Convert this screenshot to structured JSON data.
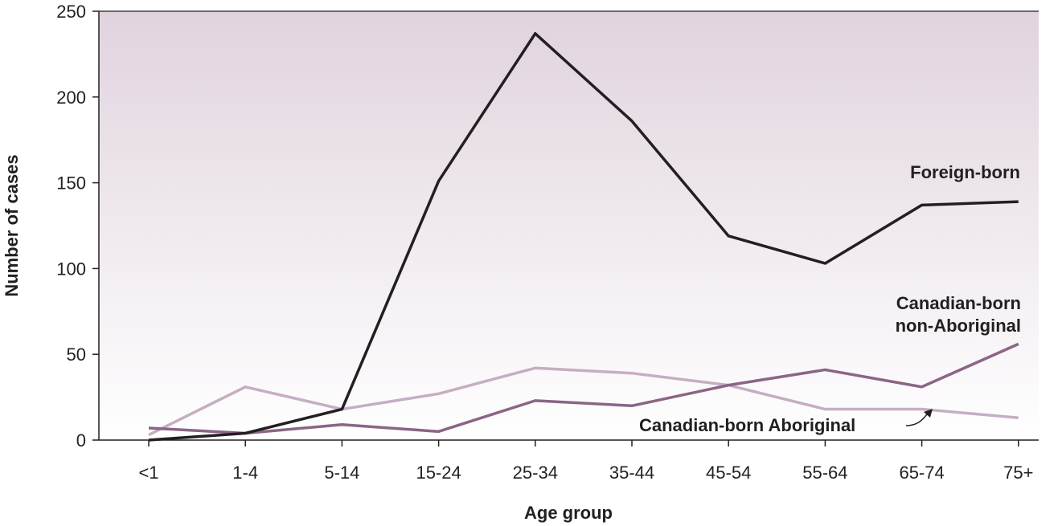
{
  "chart_data": {
    "type": "line",
    "xlabel": "Age group",
    "ylabel": "Number of cases",
    "ylim": [
      0,
      250
    ],
    "yticks": [
      0,
      50,
      100,
      150,
      200,
      250
    ],
    "categories": [
      "<1",
      "1-4",
      "5-14",
      "15-24",
      "25-34",
      "35-44",
      "45-54",
      "55-64",
      "65-74",
      "75+"
    ],
    "grid": false,
    "background": "gradient mauve (top) to white (bottom)",
    "series": [
      {
        "name": "Foreign-born",
        "label_lines": [
          "Foreign-born"
        ],
        "color": "#231f20",
        "values": [
          0,
          4,
          18,
          151,
          237,
          186,
          119,
          103,
          137,
          139
        ]
      },
      {
        "name": "Canadian-born non-Aboriginal",
        "label_lines": [
          "Canadian-born",
          "non-Aboriginal"
        ],
        "color": "#8a6585",
        "values": [
          7,
          4,
          9,
          5,
          23,
          20,
          32,
          41,
          31,
          56
        ]
      },
      {
        "name": "Canadian-born Aboriginal",
        "label_lines": [
          "Canadian-born Aboriginal"
        ],
        "color": "#c6aec2",
        "values": [
          3,
          31,
          18,
          27,
          42,
          39,
          32,
          18,
          18,
          13
        ]
      }
    ]
  },
  "colors": {
    "axis": "#231f20",
    "bg_top": "#e0d3de",
    "bg_bottom": "#ffffff"
  }
}
